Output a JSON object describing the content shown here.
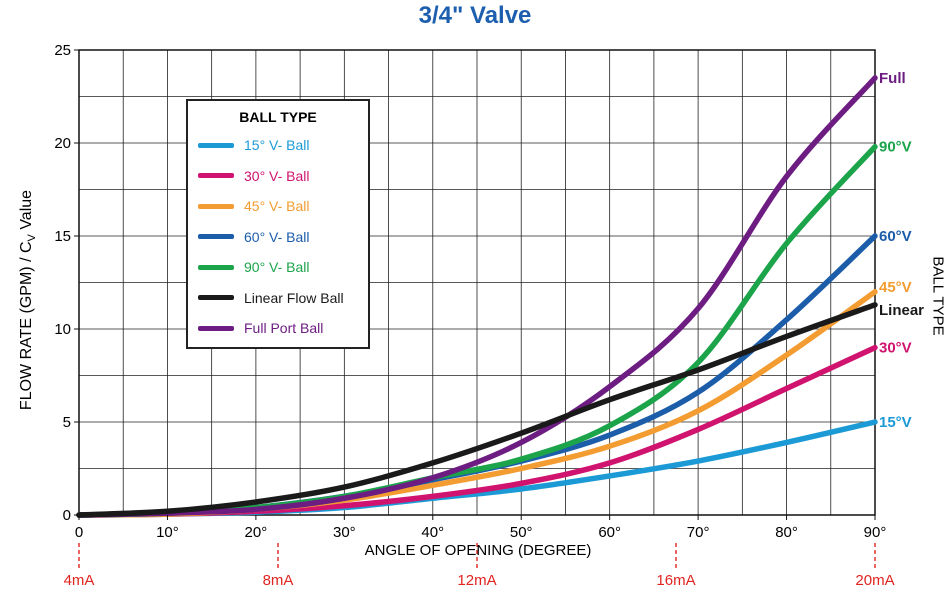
{
  "chart_data": {
    "type": "line",
    "title": "3/4\" Valve",
    "xlabel": "ANGLE OF OPENING (DEGREE)",
    "ylabel": "FLOW RATE (GPM) / C",
    "ylabel_sub": "V",
    "ylabel_suffix": " Value",
    "right_label": "BALL TYPE",
    "xlim": [
      0,
      90
    ],
    "ylim": [
      0,
      25
    ],
    "x_ticks": [
      0,
      10,
      20,
      30,
      40,
      50,
      60,
      70,
      80,
      90
    ],
    "x_tick_labels": [
      "0",
      "10°",
      "20°",
      "30°",
      "40°",
      "50°",
      "60°",
      "70°",
      "80°",
      "90°"
    ],
    "y_ticks": [
      0,
      5,
      10,
      15,
      20,
      25
    ],
    "y_tick_labels": [
      "0",
      "5",
      "10",
      "15",
      "20",
      "25"
    ],
    "grid": true,
    "legend": {
      "title": "BALL TYPE",
      "placement": "upper-left"
    },
    "signal_markers": [
      {
        "x": 0,
        "label": "4mA"
      },
      {
        "x": 22.5,
        "label": "8mA"
      },
      {
        "x": 45,
        "label": "12mA"
      },
      {
        "x": 67.5,
        "label": "16mA"
      },
      {
        "x": 90,
        "label": "20mA"
      }
    ],
    "series": [
      {
        "name": "15° V- Ball",
        "end_label": "15°V",
        "color": "#1b9ad6",
        "x": [
          0,
          10,
          20,
          30,
          40,
          50,
          60,
          70,
          80,
          90
        ],
        "y": [
          0,
          0.05,
          0.15,
          0.4,
          0.9,
          1.4,
          2.1,
          2.9,
          3.9,
          5.0
        ]
      },
      {
        "name": "30° V- Ball",
        "end_label": "30°V",
        "color": "#d0136e",
        "x": [
          0,
          10,
          20,
          30,
          40,
          50,
          60,
          70,
          80,
          90
        ],
        "y": [
          0,
          0.05,
          0.2,
          0.5,
          1.0,
          1.7,
          2.8,
          4.6,
          6.8,
          9.0
        ]
      },
      {
        "name": "45° V- Ball",
        "end_label": "45°V",
        "color": "#f39c31",
        "x": [
          0,
          10,
          20,
          30,
          40,
          50,
          60,
          70,
          80,
          90
        ],
        "y": [
          0,
          0.05,
          0.3,
          0.8,
          1.6,
          2.5,
          3.7,
          5.6,
          8.6,
          12.0
        ]
      },
      {
        "name": "60° V- Ball",
        "end_label": "60°V",
        "color": "#1c5daa",
        "x": [
          0,
          10,
          20,
          30,
          40,
          50,
          60,
          70,
          80,
          90
        ],
        "y": [
          0,
          0.1,
          0.4,
          1.0,
          1.9,
          2.9,
          4.3,
          6.6,
          10.5,
          15.0
        ]
      },
      {
        "name": "90° V- Ball",
        "end_label": "90°V",
        "color": "#1ca44b",
        "x": [
          0,
          10,
          20,
          30,
          40,
          50,
          60,
          70,
          80,
          90
        ],
        "y": [
          0,
          0.1,
          0.4,
          1.0,
          2.0,
          3.0,
          4.8,
          8.2,
          14.6,
          19.8
        ]
      },
      {
        "name": "Linear Flow Ball",
        "end_label": "Linear",
        "color": "#1a1a1a",
        "x": [
          0,
          10,
          20,
          30,
          40,
          50,
          60,
          70,
          80,
          90
        ],
        "y": [
          0,
          0.2,
          0.7,
          1.5,
          2.8,
          4.4,
          6.2,
          7.8,
          9.6,
          11.3
        ]
      },
      {
        "name": "Full Port Ball",
        "end_label": "Full",
        "color": "#6d1d82",
        "x": [
          0,
          10,
          20,
          30,
          40,
          50,
          60,
          70,
          80,
          90
        ],
        "y": [
          0,
          0.1,
          0.3,
          0.9,
          2.0,
          3.9,
          6.9,
          11.1,
          18.2,
          23.5
        ]
      }
    ]
  }
}
